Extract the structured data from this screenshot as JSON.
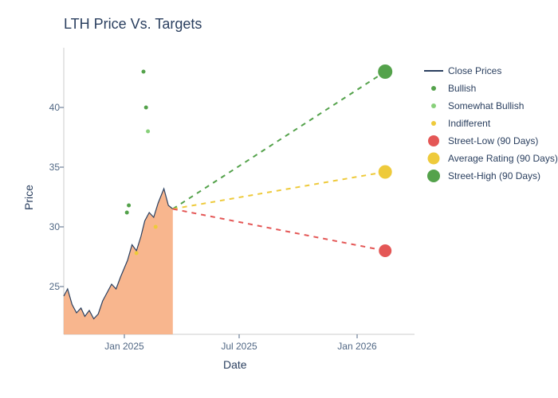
{
  "title": "LTH Price Vs. Targets",
  "xlabel": "Date",
  "ylabel": "Price",
  "type": "line+scatter",
  "background_color": "#ffffff",
  "title_fontsize": 18,
  "title_color": "#2a3f5f",
  "label_fontsize": 14,
  "tick_fontsize": 12,
  "tick_color": "#506784",
  "axis_line_color": "#cccccc",
  "xlim_dates": [
    "2024-10-01",
    "2026-04-01"
  ],
  "ylim": [
    21,
    45
  ],
  "yticks": [
    25,
    30,
    35,
    40
  ],
  "xticks": [
    {
      "date": "2025-01-01",
      "label": "Jan 2025"
    },
    {
      "date": "2025-07-01",
      "label": "Jul 2025"
    },
    {
      "date": "2026-01-01",
      "label": "Jan 2026"
    }
  ],
  "price_series": {
    "color": "#2a3f5f",
    "fill_color": "#f7ae82",
    "fill_opacity": 0.9,
    "line_width": 1.2,
    "label": "Close Prices",
    "points": [
      {
        "date": "2024-10-01",
        "v": 24.2
      },
      {
        "date": "2024-10-07",
        "v": 24.8
      },
      {
        "date": "2024-10-14",
        "v": 23.5
      },
      {
        "date": "2024-10-21",
        "v": 22.8
      },
      {
        "date": "2024-10-28",
        "v": 23.2
      },
      {
        "date": "2024-11-04",
        "v": 22.5
      },
      {
        "date": "2024-11-11",
        "v": 23.0
      },
      {
        "date": "2024-11-18",
        "v": 22.3
      },
      {
        "date": "2024-11-25",
        "v": 22.7
      },
      {
        "date": "2024-12-02",
        "v": 23.8
      },
      {
        "date": "2024-12-09",
        "v": 24.5
      },
      {
        "date": "2024-12-16",
        "v": 25.2
      },
      {
        "date": "2024-12-23",
        "v": 24.8
      },
      {
        "date": "2024-12-30",
        "v": 25.8
      },
      {
        "date": "2025-01-06",
        "v": 27.2
      },
      {
        "date": "2025-01-13",
        "v": 28.5
      },
      {
        "date": "2025-01-20",
        "v": 28.0
      },
      {
        "date": "2025-01-27",
        "v": 29.2
      },
      {
        "date": "2025-02-03",
        "v": 30.5
      },
      {
        "date": "2025-02-10",
        "v": 31.2
      },
      {
        "date": "2025-02-17",
        "v": 30.8
      },
      {
        "date": "2025-02-24",
        "v": 32.0
      },
      {
        "date": "2025-03-03",
        "v": 33.2
      },
      {
        "date": "2025-03-10",
        "v": 31.8
      },
      {
        "date": "2025-03-17",
        "v": 31.5
      }
    ]
  },
  "analyst_points": {
    "bullish": {
      "color": "#54a24b",
      "marker_size": 5,
      "label": "Bullish",
      "points": [
        {
          "date": "2025-01-05",
          "v": 31.2
        },
        {
          "date": "2025-01-08",
          "v": 31.8
        },
        {
          "date": "2025-02-01",
          "v": 43.0
        },
        {
          "date": "2025-02-05",
          "v": 40.0
        }
      ]
    },
    "somewhat_bullish": {
      "color": "#88d07a",
      "marker_size": 5,
      "label": "Somewhat Bullish",
      "points": [
        {
          "date": "2025-02-08",
          "v": 38.0
        }
      ]
    },
    "indifferent": {
      "color": "#eeca3b",
      "marker_size": 5,
      "label": "Indifferent",
      "points": [
        {
          "date": "2025-01-20",
          "v": 27.8
        },
        {
          "date": "2025-02-20",
          "v": 30.0
        }
      ]
    }
  },
  "projection_start": {
    "date": "2025-03-17",
    "v": 31.5
  },
  "targets": {
    "low": {
      "date": "2026-02-15",
      "v": 28.0,
      "color": "#e45756",
      "label": "Street-Low (90 Days)",
      "marker_size": 16,
      "dash": "6,6",
      "line_width": 2
    },
    "avg": {
      "date": "2026-02-15",
      "v": 34.6,
      "color": "#eeca3b",
      "label": "Average Rating (90 Days)",
      "marker_size": 17,
      "dash": "6,6",
      "line_width": 2
    },
    "high": {
      "date": "2026-02-15",
      "v": 43.0,
      "color": "#54a24b",
      "label": "Street-High (90 Days)",
      "marker_size": 18,
      "dash": "6,6",
      "line_width": 2
    }
  },
  "legend_order": [
    "close",
    "bullish",
    "somewhat_bullish",
    "indifferent",
    "low",
    "avg",
    "high"
  ]
}
